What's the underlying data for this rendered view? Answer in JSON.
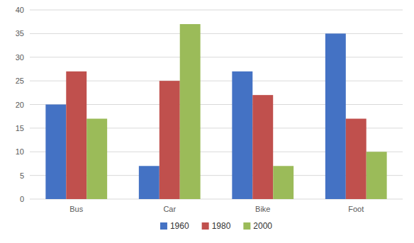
{
  "chart_data": {
    "type": "bar",
    "categories": [
      "Bus",
      "Car",
      "Bike",
      "Foot"
    ],
    "series": [
      {
        "name": "1960",
        "color": "#4472C4",
        "values": [
          20,
          7,
          27,
          35
        ]
      },
      {
        "name": "1980",
        "color": "#C0504D",
        "values": [
          27,
          25,
          22,
          17
        ]
      },
      {
        "name": "2000",
        "color": "#9BBB59",
        "values": [
          17,
          37,
          7,
          10
        ]
      }
    ],
    "ylim": [
      0,
      40
    ],
    "yticks": [
      0,
      5,
      10,
      15,
      20,
      25,
      30,
      35,
      40
    ],
    "grid": true,
    "legend": "bottom"
  }
}
